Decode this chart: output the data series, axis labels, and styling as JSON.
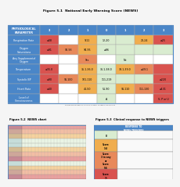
{
  "title_top": "Figure 5.1  National Early Warning Score (NEWS)",
  "title_bottom_left": "Figure 5.2  NEWS chart",
  "title_bottom_right": "Figure 5.3  Clinical response to NEWS triggers",
  "header_row": [
    "PHYSIOLOGICAL\nPARAMETER",
    "3",
    "2",
    "1",
    "0",
    "1",
    "2",
    "3"
  ],
  "rows": [
    {
      "label": "Respiration Rate",
      "cells": [
        "≤08",
        "",
        "9-11",
        "12-20",
        "",
        "21-24",
        "≥25"
      ],
      "colors": [
        "#d9534f",
        "#ffffff",
        "#f0ad4e",
        "#d9ecd0",
        "#d9ecd0",
        "#f0ad4e",
        "#d9534f"
      ]
    },
    {
      "label": "Oxygen\nSaturations",
      "cells": [
        "≤91",
        "92-93",
        "94-95",
        "≥96",
        "",
        "",
        ""
      ],
      "colors": [
        "#d9534f",
        "#e8895a",
        "#f0ad4e",
        "#d9ecd0",
        "#d9ecd0",
        "#d9ecd0",
        "#d9ecd0"
      ]
    },
    {
      "label": "Any Supplemental\nOxygen",
      "cells": [
        "",
        "",
        "Yes",
        "",
        "No",
        "",
        ""
      ],
      "colors": [
        "#ffffff",
        "#ffffff",
        "#e8895a",
        "#ffffff",
        "#d9ecd0",
        "#ffffff",
        "#ffffff"
      ]
    },
    {
      "label": "Temperature",
      "cells": [
        "≤35.0",
        "",
        "35.1-36.0",
        "36.1-38.0",
        "38.1-39.0",
        "≥39.1",
        ""
      ],
      "colors": [
        "#d9534f",
        "#ffffff",
        "#f0ad4e",
        "#d9ecd0",
        "#f0ad4e",
        "#e8895a",
        "#d9534f"
      ]
    },
    {
      "label": "Systolic BP",
      "cells": [
        "≤90",
        "91-100",
        "101-110",
        "111-219",
        "",
        "",
        "≥220"
      ],
      "colors": [
        "#d9534f",
        "#e8895a",
        "#f0ad4e",
        "#d9ecd0",
        "#d9ecd0",
        "#d9ecd0",
        "#d9534f"
      ]
    },
    {
      "label": "Heart Rate",
      "cells": [
        "≤40",
        "",
        "41-50",
        "51-90",
        "91-110",
        "111-130",
        "≥131"
      ],
      "colors": [
        "#d9534f",
        "#ffffff",
        "#f0ad4e",
        "#d9ecd0",
        "#f0ad4e",
        "#e8895a",
        "#d9534f"
      ]
    },
    {
      "label": "Level of\nConsciousness",
      "cells": [
        "",
        "",
        "",
        "A",
        "",
        "",
        "V, P or U"
      ],
      "colors": [
        "#ffffff",
        "#ffffff",
        "#ffffff",
        "#d9ecd0",
        "#ffffff",
        "#ffffff",
        "#d9534f"
      ]
    }
  ],
  "header_bg": "#4a86c8",
  "label_bg": "#4a86c8",
  "table_border": "#4a86c8",
  "cell_border": "#aaaaaa",
  "fig_bg": "#f5f5f5",
  "source_text": "Source for Figures 5.1, 5.2 & 5.3: Royal College of Physicians",
  "news_left_col_bg": "#b0cce8",
  "news_band_colors": [
    "#d9534f",
    "#e8895a",
    "#f0ad4e",
    "#d9ecd0",
    "#d9ecd0",
    "#f0ad4e",
    "#e8895a",
    "#d9534f",
    "#d9ecd0",
    "#f0ad4e",
    "#e8895a",
    "#d9534f"
  ],
  "news_grid_bg": "#ffffff",
  "cr_scores": [
    "0",
    "Score\n1-4",
    "Score\n3 in any\nor\nScore\n5-6",
    "Score\n7+"
  ],
  "cr_score_colors": [
    "#d9ecd0",
    "#f0ad4e",
    "#e8895a",
    "#d9534f"
  ],
  "cr_header_bg": "#4a86c8"
}
